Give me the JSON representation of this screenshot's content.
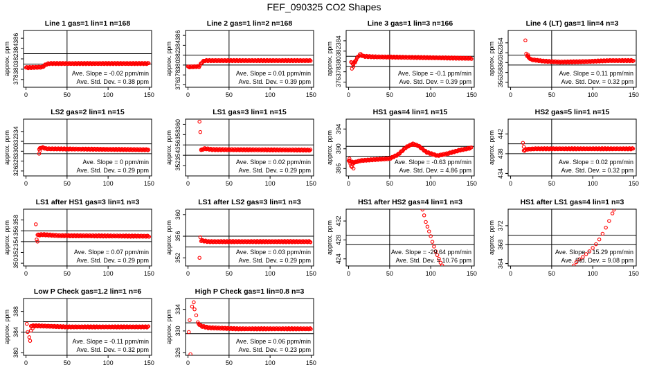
{
  "page_title": "FEF_090325  CO2 Shapes",
  "chart_data": [
    {
      "type": "scatter",
      "title": "Line 1 gas=1 lin=1 n=168",
      "ylabel": "approx. ppm",
      "xlim": [
        -3,
        153
      ],
      "ylim": [
        376.5,
        387.5
      ],
      "xticks": [
        0,
        50,
        100,
        150
      ],
      "yticks": [
        378,
        380,
        382,
        384,
        386
      ],
      "vline": 50,
      "hlines": [
        383,
        381
      ],
      "annotation": [
        "Ave. Slope = -0.02 ppm/min",
        "Ave. Std. Dev. = 0.38 ppm"
      ],
      "shape": "flat",
      "curve": [
        [
          0,
          380.3
        ],
        [
          20,
          380.4
        ],
        [
          24,
          380.9
        ],
        [
          28,
          381.1
        ],
        [
          150,
          381.1
        ]
      ],
      "series_points": []
    },
    {
      "type": "scatter",
      "title": "Line 2 gas=1 lin=2 n=168",
      "ylabel": "approx. ppm",
      "xlim": [
        -3,
        153
      ],
      "ylim": [
        375.5,
        387.0
      ],
      "xticks": [
        0,
        50,
        100,
        150
      ],
      "yticks": [
        376,
        378,
        380,
        382,
        384,
        386
      ],
      "vline": 50,
      "hlines": [
        382,
        380
      ],
      "annotation": [
        "Ave. Slope = 0.01 ppm/min",
        "Ave. Std. Dev. = 0.39 ppm"
      ],
      "curve": [
        [
          0,
          379.6
        ],
        [
          14,
          379.7
        ],
        [
          16,
          380.4
        ],
        [
          20,
          380.9
        ],
        [
          150,
          380.9
        ]
      ],
      "series_points": []
    },
    {
      "type": "scatter",
      "title": "Line 3 gas=1 lin=3 n=166",
      "ylabel": "approx. ppm",
      "xlim": [
        -3,
        153
      ],
      "ylim": [
        375.0,
        386.0
      ],
      "xticks": [
        0,
        50,
        100,
        150
      ],
      "yticks": [
        376,
        378,
        380,
        382,
        384
      ],
      "vline": 50,
      "hlines": [
        381,
        379
      ],
      "annotation": [
        "Ave. Slope = -0.1 ppm/min",
        "Ave. Std. Dev. = 0.39 ppm"
      ],
      "curve": [
        [
          3,
          379.8
        ],
        [
          6,
          379.5
        ],
        [
          10,
          380.6
        ],
        [
          14,
          381.4
        ],
        [
          18,
          381.0
        ],
        [
          30,
          380.9
        ],
        [
          150,
          380.6
        ]
      ],
      "series_points": [
        [
          4,
          378.6
        ],
        [
          6,
          379.0
        ],
        [
          8,
          379.8
        ]
      ]
    },
    {
      "type": "scatter",
      "title": "Line 4 (LT) gas=1 lin=4 n=3",
      "ylabel": "approx. ppm",
      "xlim": [
        -3,
        153
      ],
      "ylim": [
        355.0,
        366.5
      ],
      "xticks": [
        0,
        50,
        100,
        150
      ],
      "yticks": [
        356,
        358,
        360,
        362,
        364
      ],
      "vline": 50,
      "hlines": [
        361.5,
        359.5
      ],
      "annotation": [
        "Ave. Slope = 0.11 ppm/min",
        "Ave. Std. Dev. = 0.32 ppm"
      ],
      "curve": [
        [
          20,
          361.4
        ],
        [
          25,
          360.6
        ],
        [
          40,
          360.3
        ],
        [
          60,
          360.1
        ],
        [
          90,
          360.2
        ],
        [
          120,
          360.4
        ],
        [
          150,
          360.4
        ]
      ],
      "series_points": [
        [
          18,
          364.5
        ],
        [
          19,
          361.8
        ],
        [
          21,
          361.6
        ],
        [
          22,
          361.0
        ]
      ]
    },
    {
      "type": "scatter",
      "title": "LS2 gas=2 lin=1 n=15",
      "ylabel": "approx. ppm",
      "xlim": [
        -3,
        153
      ],
      "ylim": [
        325.0,
        336.5
      ],
      "xticks": [
        0,
        50,
        100,
        150
      ],
      "yticks": [
        326,
        328,
        330,
        332,
        334
      ],
      "vline": 50,
      "hlines": [
        331.5,
        329.5
      ],
      "annotation": [
        "Ave. Slope = 0 ppm/min",
        "Ave. Std. Dev. = 0.29 ppm"
      ],
      "curve": [
        [
          16,
          330.4
        ],
        [
          19,
          330.8
        ],
        [
          25,
          330.5
        ],
        [
          150,
          330.3
        ]
      ],
      "series_points": [
        [
          16,
          329.5
        ],
        [
          17,
          330.1
        ]
      ]
    },
    {
      "type": "scatter",
      "title": "LS1 gas=3 lin=1 n=15",
      "ylabel": "approx. ppm",
      "xlim": [
        -3,
        153
      ],
      "ylim": [
        350.0,
        361.0
      ],
      "xticks": [
        0,
        50,
        100,
        150
      ],
      "yticks": [
        352,
        354,
        356,
        358,
        360
      ],
      "vline": 50,
      "hlines": [
        356,
        354
      ],
      "annotation": [
        "Ave. Slope = 0.02 ppm/min",
        "Ave. Std. Dev. = 0.29 ppm"
      ],
      "curve": [
        [
          16,
          355.0
        ],
        [
          20,
          355.3
        ],
        [
          30,
          355.1
        ],
        [
          150,
          355.0
        ]
      ],
      "series_points": [
        [
          14,
          360.5
        ],
        [
          15,
          358.5
        ],
        [
          16,
          355.0
        ]
      ]
    },
    {
      "type": "scatter",
      "title": "HS1 gas=4 lin=1 n=15",
      "ylabel": "approx. ppm",
      "xlim": [
        -3,
        153
      ],
      "ylim": [
        384.5,
        396.0
      ],
      "xticks": [
        0,
        50,
        100,
        150
      ],
      "yticks": [
        386,
        390,
        394
      ],
      "vline": 50,
      "hlines": [
        390.5,
        388.5
      ],
      "annotation": [
        "Ave. Slope = -0.63 ppm/min",
        "Ave. Std. Dev. = 4.86 ppm"
      ],
      "curve": [
        [
          0,
          387.6
        ],
        [
          6,
          387.2
        ],
        [
          15,
          387.6
        ],
        [
          30,
          387.8
        ],
        [
          50,
          388.0
        ],
        [
          60,
          388.8
        ],
        [
          70,
          390.3
        ],
        [
          78,
          391.0
        ],
        [
          85,
          390.6
        ],
        [
          95,
          389.3
        ],
        [
          108,
          388.6
        ],
        [
          120,
          389.0
        ],
        [
          135,
          389.7
        ],
        [
          150,
          390.2
        ]
      ],
      "series_points": [
        [
          1,
          388.0
        ],
        [
          2,
          387.0
        ],
        [
          3,
          386.5
        ],
        [
          4,
          386.3
        ],
        [
          5,
          386.9
        ],
        [
          6,
          386.0
        ],
        [
          8,
          387.3
        ]
      ]
    },
    {
      "type": "scatter",
      "title": "HS2 gas=5 lin=1 n=15",
      "ylabel": "approx. ppm",
      "xlim": [
        -3,
        153
      ],
      "ylim": [
        433.5,
        445.0
      ],
      "xticks": [
        0,
        50,
        100,
        150
      ],
      "yticks": [
        434,
        438,
        442
      ],
      "vline": 50,
      "hlines": [
        440,
        438
      ],
      "annotation": [
        "Ave. Slope = 0.02 ppm/min",
        "Ave. Std. Dev. = 0.32 ppm"
      ],
      "curve": [
        [
          16,
          438.6
        ],
        [
          19,
          438.9
        ],
        [
          30,
          439.0
        ],
        [
          150,
          439.0
        ]
      ],
      "series_points": [
        [
          15,
          440.2
        ],
        [
          16,
          439.4
        ]
      ]
    },
    {
      "type": "scatter",
      "title": "LS1 after HS1 gas=3 lin=1 n=3",
      "ylabel": "approx. ppm",
      "xlim": [
        -3,
        153
      ],
      "ylim": [
        349.5,
        360.0
      ],
      "xticks": [
        0,
        50,
        100,
        150
      ],
      "yticks": [
        350,
        352,
        354,
        356,
        358
      ],
      "vline": 50,
      "hlines": [
        356,
        354
      ],
      "annotation": [
        "Ave. Slope = 0.07 ppm/min",
        "Ave. Std. Dev. = 0.29 ppm"
      ],
      "curve": [
        [
          14,
          355.2
        ],
        [
          20,
          355.3
        ],
        [
          40,
          355.1
        ],
        [
          150,
          355.0
        ]
      ],
      "series_points": [
        [
          12,
          357.2
        ],
        [
          13,
          354.4
        ],
        [
          14,
          354.0
        ]
      ]
    },
    {
      "type": "scatter",
      "title": "LS1 after LS2 gas=3 lin=1 n=3",
      "ylabel": "approx. ppm",
      "xlim": [
        -3,
        153
      ],
      "ylim": [
        350.5,
        361.0
      ],
      "xticks": [
        0,
        50,
        100,
        150
      ],
      "yticks": [
        352,
        356,
        360
      ],
      "vline": 50,
      "hlines": [
        356,
        354
      ],
      "annotation": [
        "Ave. Slope = 0.03 ppm/min",
        "Ave. Std. Dev. = 0.29 ppm"
      ],
      "curve": [
        [
          16,
          355.2
        ],
        [
          25,
          355.0
        ],
        [
          150,
          355.0
        ]
      ],
      "series_points": [
        [
          15,
          355.8
        ],
        [
          14,
          352.0
        ]
      ]
    },
    {
      "type": "scatter",
      "title": "HS1 after HS2 gas=4 lin=1 n=3",
      "ylabel": "approx. ppm",
      "xlim": [
        -3,
        153
      ],
      "ylim": [
        422.5,
        434.5
      ],
      "xticks": [
        0,
        50,
        100,
        150
      ],
      "yticks": [
        424,
        428,
        432
      ],
      "vline": 50,
      "hlines": [
        429,
        427
      ],
      "annotation": [
        "Ave. Slope = -29.64 ppm/min",
        "Ave. Std. Dev. = 10.76 ppm"
      ],
      "curve": [],
      "series_points": [
        [
          90,
          434.4
        ],
        [
          92,
          433.2
        ],
        [
          94,
          431.8
        ],
        [
          96,
          430.8
        ],
        [
          98,
          429.8
        ],
        [
          100,
          428.8
        ],
        [
          102,
          427.6
        ],
        [
          104,
          426.6
        ],
        [
          106,
          425.6
        ],
        [
          108,
          424.8
        ],
        [
          110,
          424.0
        ],
        [
          112,
          423.2
        ],
        [
          114,
          422.6
        ]
      ]
    },
    {
      "type": "scatter",
      "title": "HS1 after LS1 gas=4 lin=1 n=3",
      "ylabel": "approx. ppm",
      "xlim": [
        -3,
        153
      ],
      "ylim": [
        363.5,
        375.5
      ],
      "xticks": [
        0,
        50,
        100,
        150
      ],
      "yticks": [
        364,
        368,
        372
      ],
      "vline": 50,
      "hlines": [
        370,
        368
      ],
      "annotation": [
        "Ave. Slope = 15.29 ppm/min",
        "Ave. Std. Dev. = 9.08 ppm"
      ],
      "curve": [],
      "series_points": [
        [
          77,
          363.6
        ],
        [
          80,
          364.3
        ],
        [
          84,
          364.9
        ],
        [
          88,
          365.4
        ],
        [
          92,
          366.0
        ],
        [
          96,
          366.6
        ],
        [
          100,
          367.3
        ],
        [
          104,
          368.1
        ],
        [
          108,
          369.1
        ],
        [
          112,
          370.3
        ],
        [
          116,
          371.6
        ],
        [
          120,
          373.0
        ],
        [
          124,
          374.6
        ],
        [
          126,
          375.4
        ]
      ]
    },
    {
      "type": "scatter",
      "title": "Low P Check gas=1.2 lin=1 n=6",
      "ylabel": "approx. ppm",
      "xlim": [
        -3,
        153
      ],
      "ylim": [
        379.5,
        390.5
      ],
      "xticks": [
        0,
        50,
        100,
        150
      ],
      "yticks": [
        380,
        384,
        388
      ],
      "vline": 50,
      "hlines": [
        386,
        384
      ],
      "annotation": [
        "Ave. Slope = -0.11 ppm/min",
        "Ave. Std. Dev. = 0.32 ppm"
      ],
      "curve": [
        [
          6,
          385.2
        ],
        [
          15,
          385.2
        ],
        [
          50,
          385.0
        ],
        [
          150,
          385.0
        ]
      ],
      "series_points": [
        [
          1,
          385.6
        ],
        [
          2,
          384.0
        ],
        [
          4,
          383.0
        ],
        [
          5,
          382.3
        ],
        [
          6,
          384.3
        ],
        [
          8,
          384.7
        ]
      ]
    },
    {
      "type": "scatter",
      "title": "High P Check gas=1 lin=0.8 n=3",
      "ylabel": "approx. ppm",
      "xlim": [
        -3,
        153
      ],
      "ylim": [
        325.5,
        336.0
      ],
      "xticks": [
        0,
        50,
        100,
        150
      ],
      "yticks": [
        326,
        330,
        334
      ],
      "vline": 50,
      "hlines": [
        331.5,
        329.5
      ],
      "annotation": [
        "Ave. Slope = 0.06 ppm/min",
        "Ave. Std. Dev. = 0.23 ppm"
      ],
      "curve": [
        [
          12,
          331.5
        ],
        [
          16,
          330.9
        ],
        [
          25,
          330.6
        ],
        [
          60,
          330.4
        ],
        [
          150,
          330.4
        ]
      ],
      "series_points": [
        [
          1,
          329.8
        ],
        [
          2,
          332.0
        ],
        [
          5,
          334.5
        ],
        [
          7,
          335.3
        ],
        [
          8,
          334.0
        ],
        [
          10,
          332.9
        ],
        [
          3,
          325.7
        ]
      ]
    }
  ]
}
